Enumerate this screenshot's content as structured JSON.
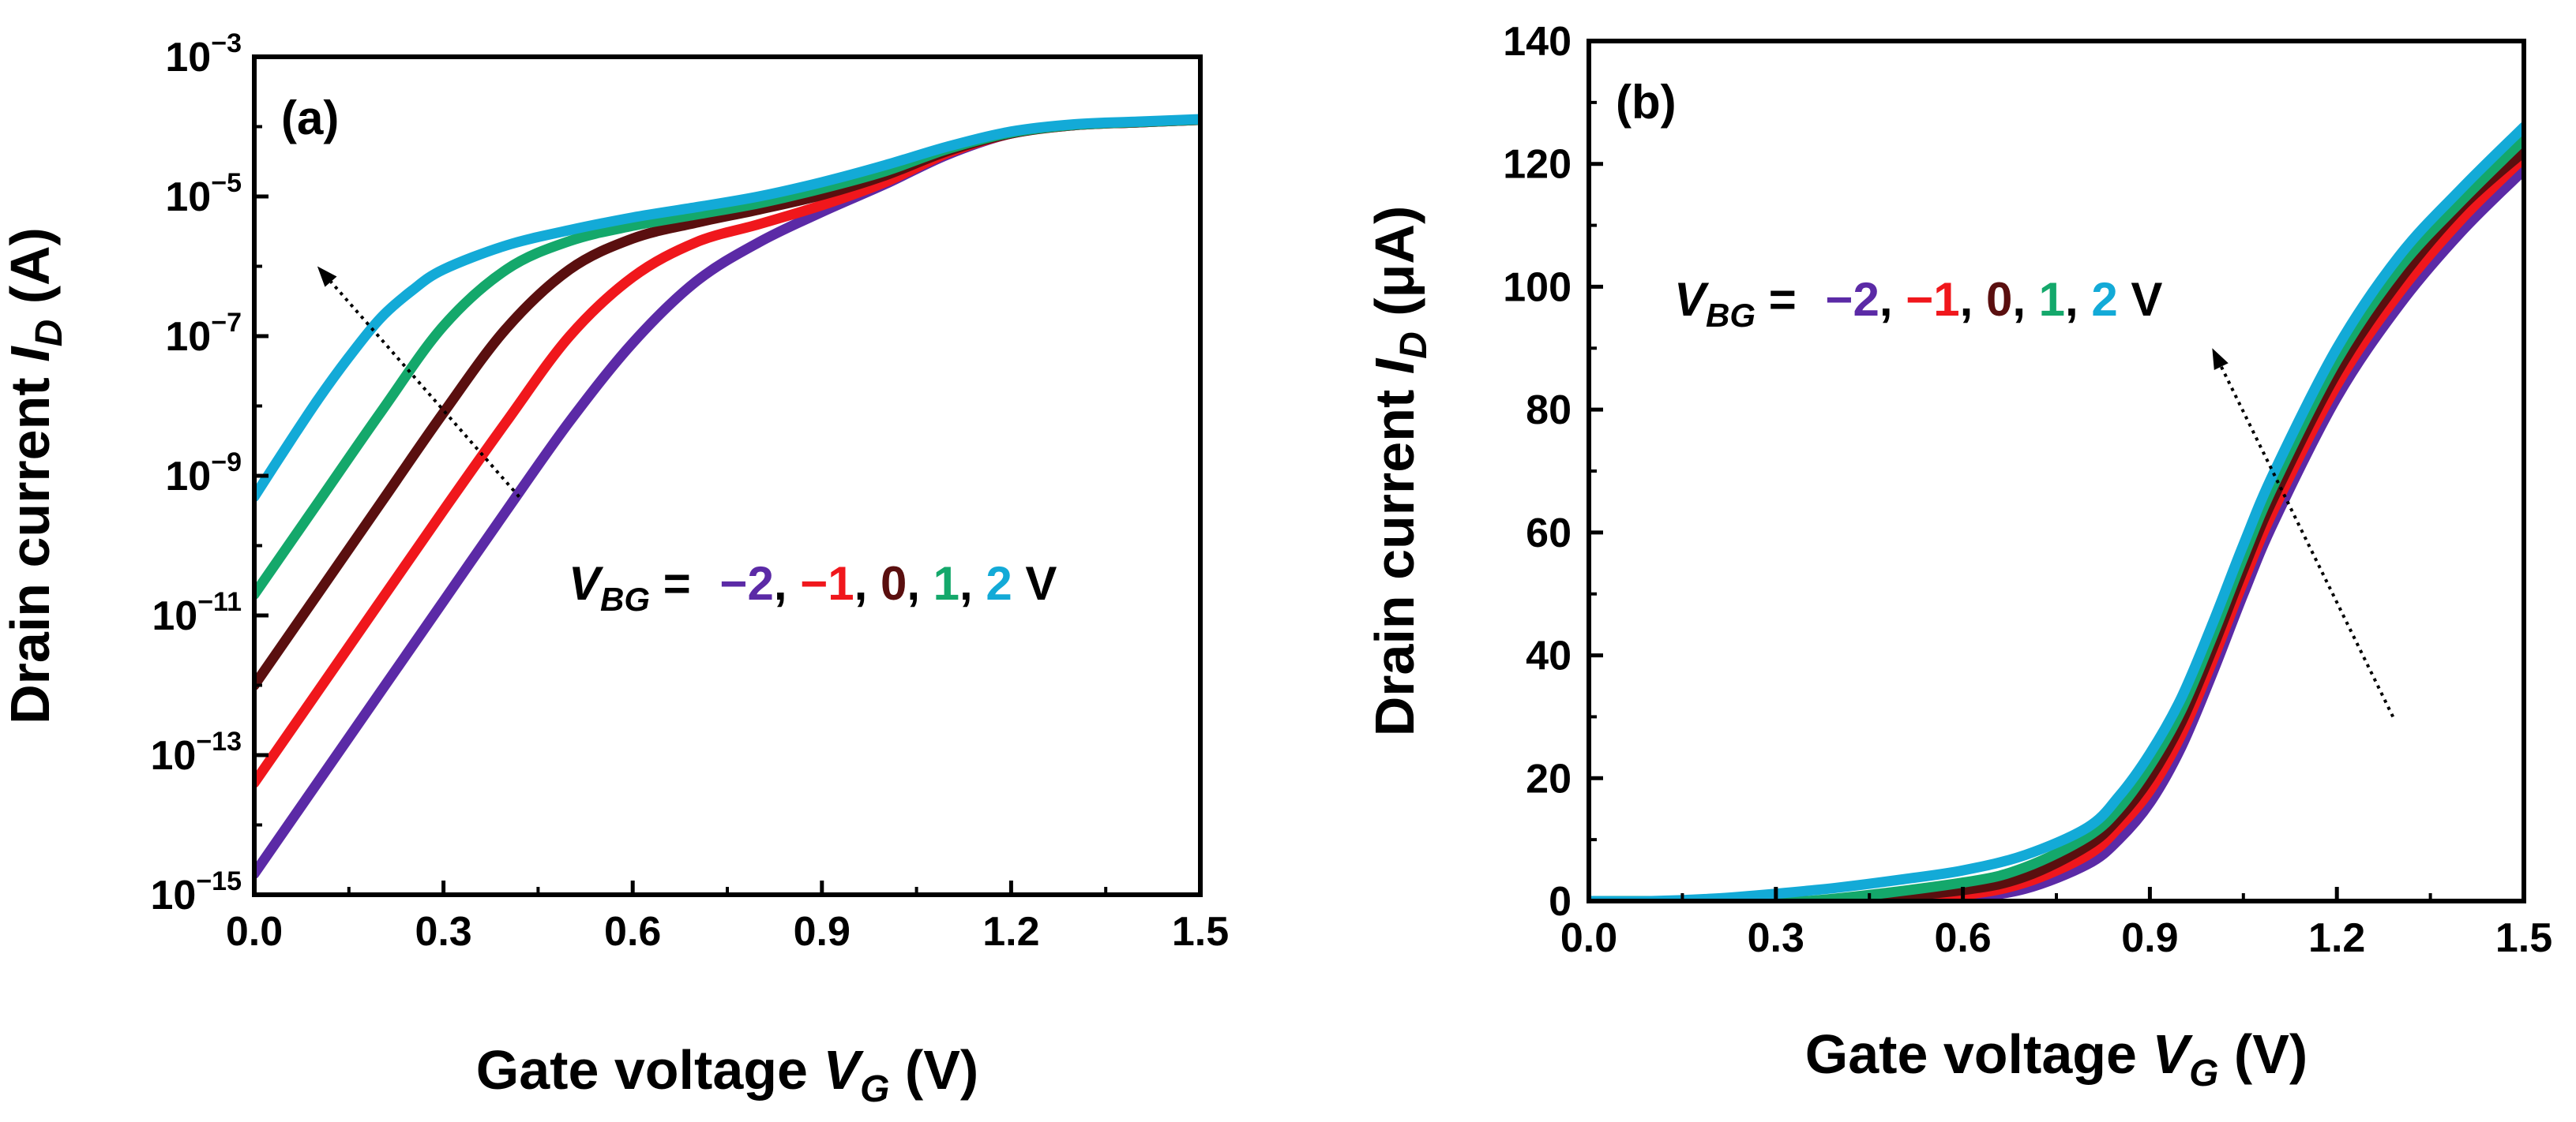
{
  "chart_data": [
    {
      "type": "line",
      "panel": "(a)",
      "xlabel": {
        "pre": "Gate voltage ",
        "var": "V",
        "sub": "G",
        "post": " (V)"
      },
      "ylabel": {
        "pre": "Drain current ",
        "var": "I",
        "sub": "D",
        "post": " (A)"
      },
      "xlim": [
        0,
        1.5
      ],
      "yscale": "log",
      "ylim": [
        1e-15,
        0.001
      ],
      "xticks": [
        "0.0",
        "0.3",
        "0.6",
        "0.9",
        "1.2",
        "1.5"
      ],
      "yticks": [
        {
          "base": "10",
          "exp": "−15"
        },
        {
          "base": "10",
          "exp": "−13"
        },
        {
          "base": "10",
          "exp": "−11"
        },
        {
          "base": "10",
          "exp": "−9"
        },
        {
          "base": "10",
          "exp": "−7"
        },
        {
          "base": "10",
          "exp": "−5"
        },
        {
          "base": "10",
          "exp": "−3"
        }
      ],
      "legend": {
        "var": "V",
        "sub": "BG",
        "eq": " = ",
        "items": [
          {
            "text": "−2",
            "color": "#5b2aa6"
          },
          {
            "text": "−1",
            "color": "#f0171c"
          },
          {
            "text": "0",
            "color": "#5a0f0f"
          },
          {
            "text": "1",
            "color": "#14a86b"
          },
          {
            "text": "2",
            "color": "#13aad7"
          }
        ],
        "sep": ", ",
        "unit": " V"
      },
      "arrow": {
        "from": [
          0.42,
          5e-10
        ],
        "to": [
          0.1,
          1e-06
        ]
      },
      "series": [
        {
          "name": "VBG = −2 V",
          "color": "#5b2aa6",
          "x": [
            0.0,
            0.1,
            0.2,
            0.3,
            0.4,
            0.5,
            0.6,
            0.7,
            0.8,
            0.9,
            1.0,
            1.1,
            1.2,
            1.3,
            1.4,
            1.5
          ],
          "y": [
            2e-15,
            4e-14,
            8e-13,
            1.6e-11,
            3.2e-10,
            6e-09,
            8e-08,
            6e-07,
            2.2e-06,
            6e-06,
            1.5e-05,
            4e-05,
            8e-05,
            0.000105,
            0.000115,
            0.000125
          ]
        },
        {
          "name": "VBG = −1 V",
          "color": "#f0171c",
          "x": [
            0.0,
            0.1,
            0.2,
            0.3,
            0.4,
            0.5,
            0.6,
            0.7,
            0.8,
            0.9,
            1.0,
            1.1,
            1.2,
            1.3,
            1.4,
            1.5
          ],
          "y": [
            4e-14,
            8e-13,
            1.6e-11,
            3.2e-10,
            6e-09,
            1e-07,
            7e-07,
            2.2e-06,
            4e-06,
            7.5e-06,
            1.6e-05,
            4.2e-05,
            8e-05,
            0.000105,
            0.000115,
            0.000125
          ]
        },
        {
          "name": "VBG = 0 V",
          "color": "#5a0f0f",
          "x": [
            0.0,
            0.1,
            0.2,
            0.3,
            0.4,
            0.5,
            0.6,
            0.7,
            0.8,
            0.9,
            1.0,
            1.1,
            1.2,
            1.3,
            1.4,
            1.5
          ],
          "y": [
            1e-12,
            2e-11,
            4e-10,
            8e-09,
            1.3e-07,
            9e-07,
            2.5e-06,
            4.2e-06,
            6.5e-06,
            1.05e-05,
            2e-05,
            4.5e-05,
            8e-05,
            0.000105,
            0.000115,
            0.000125
          ]
        },
        {
          "name": "VBG = 1 V",
          "color": "#14a86b",
          "x": [
            0.0,
            0.1,
            0.2,
            0.3,
            0.4,
            0.5,
            0.6,
            0.7,
            0.8,
            0.9,
            1.0,
            1.1,
            1.2,
            1.3,
            1.4,
            1.5
          ],
          "y": [
            2e-11,
            4e-10,
            8e-09,
            1.4e-07,
            9e-07,
            2.3e-06,
            3.8e-06,
            5.5e-06,
            8e-06,
            1.3e-05,
            2.3e-05,
            4.8e-05,
            8.2e-05,
            0.000106,
            0.000116,
            0.000126
          ]
        },
        {
          "name": "VBG = 2 V",
          "color": "#13aad7",
          "x": [
            0.0,
            0.05,
            0.1,
            0.15,
            0.2,
            0.25,
            0.3,
            0.4,
            0.5,
            0.6,
            0.7,
            0.8,
            0.9,
            1.0,
            1.1,
            1.2,
            1.3,
            1.4,
            1.5
          ],
          "y": [
            5e-10,
            2.5e-09,
            1.2e-08,
            5e-08,
            1.8e-07,
            4.5e-07,
            9e-07,
            2e-06,
            3.3e-06,
            5e-06,
            7e-06,
            1e-05,
            1.6e-05,
            2.8e-05,
            5.2e-05,
            8.5e-05,
            0.000108,
            0.000118,
            0.000128
          ]
        }
      ]
    },
    {
      "type": "line",
      "panel": "(b)",
      "xlabel": {
        "pre": "Gate voltage ",
        "var": "V",
        "sub": "G",
        "post": " (V)"
      },
      "ylabel": {
        "pre": "Drain current ",
        "var": "I",
        "sub": "D",
        "post": " (μA)"
      },
      "xlim": [
        0,
        1.5
      ],
      "yscale": "linear",
      "ylim": [
        0,
        140
      ],
      "xticks": [
        "0.0",
        "0.3",
        "0.6",
        "0.9",
        "1.2",
        "1.5"
      ],
      "yticks": [
        "0",
        "20",
        "40",
        "60",
        "80",
        "100",
        "120",
        "140"
      ],
      "legend": {
        "var": "V",
        "sub": "BG",
        "eq": " = ",
        "items": [
          {
            "text": "−2",
            "color": "#5b2aa6"
          },
          {
            "text": "−1",
            "color": "#f0171c"
          },
          {
            "text": "0",
            "color": "#5a0f0f"
          },
          {
            "text": "1",
            "color": "#14a86b"
          },
          {
            "text": "2",
            "color": "#13aad7"
          }
        ],
        "sep": ", ",
        "unit": " V"
      },
      "arrow": {
        "from": [
          1.29,
          30
        ],
        "to": [
          1.0,
          90
        ]
      },
      "series": [
        {
          "name": "VBG = −2 V",
          "color": "#5b2aa6",
          "x": [
            0.0,
            0.3,
            0.5,
            0.6,
            0.7,
            0.8,
            0.85,
            0.9,
            0.95,
            1.0,
            1.05,
            1.1,
            1.2,
            1.3,
            1.4,
            1.5
          ],
          "y": [
            0,
            0,
            0,
            0.5,
            2,
            6,
            10,
            16,
            25,
            37,
            50,
            62,
            82,
            97,
            109,
            119
          ]
        },
        {
          "name": "VBG = −1 V",
          "color": "#f0171c",
          "x": [
            0.0,
            0.3,
            0.45,
            0.6,
            0.7,
            0.8,
            0.85,
            0.9,
            0.95,
            1.0,
            1.05,
            1.1,
            1.2,
            1.3,
            1.4,
            1.5
          ],
          "y": [
            0,
            0,
            0,
            1,
            3,
            7.5,
            12,
            18,
            27,
            39,
            52,
            64,
            84,
            99,
            111,
            121
          ]
        },
        {
          "name": "VBG = 0 V",
          "color": "#5a0f0f",
          "x": [
            0.0,
            0.3,
            0.4,
            0.6,
            0.7,
            0.8,
            0.85,
            0.9,
            0.95,
            1.0,
            1.05,
            1.1,
            1.2,
            1.3,
            1.4,
            1.5
          ],
          "y": [
            0,
            0,
            0,
            1.8,
            4,
            9,
            13.5,
            20,
            29,
            41,
            54,
            66,
            86,
            101,
            113,
            122
          ]
        },
        {
          "name": "VBG = 1 V",
          "color": "#14a86b",
          "x": [
            0.0,
            0.2,
            0.35,
            0.6,
            0.7,
            0.8,
            0.85,
            0.9,
            0.95,
            1.0,
            1.05,
            1.1,
            1.2,
            1.3,
            1.4,
            1.5
          ],
          "y": [
            0,
            0,
            0,
            3,
            5.5,
            10.5,
            15,
            22,
            31,
            43,
            56,
            68,
            88,
            103,
            114,
            124
          ]
        },
        {
          "name": "VBG = 2 V",
          "color": "#13aad7",
          "x": [
            0.0,
            0.1,
            0.2,
            0.3,
            0.4,
            0.5,
            0.6,
            0.7,
            0.8,
            0.85,
            0.9,
            0.95,
            1.0,
            1.05,
            1.1,
            1.2,
            1.3,
            1.4,
            1.5
          ],
          "y": [
            0,
            0,
            0.4,
            1.2,
            2.2,
            3.5,
            5,
            7.5,
            12,
            17,
            24,
            33,
            45,
            58,
            70,
            90,
            105,
            116,
            126
          ]
        }
      ]
    }
  ]
}
